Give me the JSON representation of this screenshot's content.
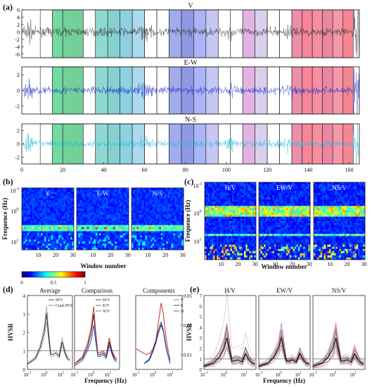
{
  "chart_data": [
    {
      "panel": "(a)",
      "type": "line",
      "traces": [
        {
          "name": "V",
          "color": "#333333",
          "ylim": [
            -7,
            6
          ],
          "yticks": [
            -6,
            -4,
            -2,
            0,
            2,
            4,
            6
          ],
          "spike_end": 6
        },
        {
          "name": "E-W",
          "color": "#2233cc",
          "ylim": [
            -3,
            3
          ],
          "yticks": [
            -2,
            0,
            2
          ],
          "spike_end": 2
        },
        {
          "name": "N-S",
          "color": "#22bbdd",
          "ylim": [
            -3,
            3
          ],
          "yticks": [
            -2,
            0,
            2
          ],
          "spike_end": 2
        }
      ],
      "xlim": [
        0,
        165
      ],
      "xticks": [
        0,
        20,
        40,
        60,
        80,
        100,
        120,
        140,
        160
      ],
      "window_edges": [
        9,
        15,
        20,
        30,
        36,
        42,
        48,
        54,
        60,
        66,
        72,
        78,
        84,
        90,
        96,
        102,
        108,
        114,
        120,
        126,
        132,
        137,
        142,
        147,
        152,
        157,
        162
      ],
      "window_colors": [
        "#ffffff",
        "#00bb55",
        "#00aa44",
        "#ffffff",
        "#33bbaa",
        "#22aaaa",
        "#33aacc",
        "#66bbdd",
        "#ffffff",
        "#ffffff",
        "#5566dd",
        "#3344cc",
        "#6677ee",
        "#9999ee",
        "#ffffff",
        "#ffffff",
        "#cc77cc",
        "#bbaadd",
        "#ffffff",
        "#ffffff",
        "#dd3366",
        "#ee2244",
        "#ee3355",
        "#dd2255",
        "#ee4466",
        "#ee2233"
      ]
    },
    {
      "panel": "(b)",
      "type": "heatmap",
      "subplots": [
        "V",
        "E-W",
        "N-S"
      ],
      "ylabel": "Frequence (Hz)",
      "xlabel": "Window number",
      "xticks": [
        10,
        20,
        30
      ],
      "yticks": [
        "10^-1",
        "10^0",
        "10^1"
      ],
      "colorbar": {
        "ticks": [
          0,
          0.5,
          1
        ]
      }
    },
    {
      "panel": "(c)",
      "type": "heatmap",
      "subplots": [
        "H/V",
        "EW/V",
        "NS/V"
      ],
      "ylabel": "Frequence (Hz)",
      "xlabel": "Window number",
      "xticks": [
        10,
        20,
        30
      ],
      "yticks": [
        "10^-1",
        "10^0",
        "10^1"
      ]
    },
    {
      "panel": "(d)",
      "type": "line",
      "ylabel": "HVSR",
      "xlabel": "Frequency (Hz)",
      "subplots": [
        {
          "title": "Average",
          "legend": [
            "H/V",
            "Conf.95%"
          ],
          "ylim": [
            0,
            4
          ],
          "yticks": [
            0,
            1,
            2,
            3,
            4
          ],
          "series": [
            {
              "name": "H/V",
              "color": "#222222",
              "x": [
                0.1,
                0.3,
                0.6,
                1.0,
                1.4,
                1.8,
                2.5,
                3.5,
                5,
                8,
                12,
                18,
                25,
                35
              ],
              "y": [
                0.3,
                0.6,
                1.2,
                2.0,
                3.0,
                2.0,
                0.8,
                0.8,
                0.9,
                0.7,
                1.5,
                0.9,
                0.6,
                0.5
              ]
            }
          ]
        },
        {
          "title": "Comparison",
          "legend": [
            "H/V",
            "E/V",
            "N/V"
          ],
          "ylim": [
            0,
            4
          ],
          "series": [
            {
              "name": "H/V",
              "color": "#222222",
              "x": [
                0.1,
                0.3,
                0.6,
                1.0,
                1.4,
                1.8,
                2.5,
                3.5,
                5,
                8,
                12,
                18,
                25,
                35
              ],
              "y": [
                0.3,
                0.6,
                1.2,
                2.0,
                3.0,
                2.0,
                0.8,
                0.8,
                0.9,
                0.7,
                1.5,
                0.9,
                0.6,
                0.5
              ]
            },
            {
              "name": "E/V",
              "color": "#3344cc",
              "x": [
                0.1,
                0.3,
                0.6,
                1.0,
                1.4,
                1.8,
                2.5,
                3.5,
                5,
                8,
                12,
                18,
                25,
                35
              ],
              "y": [
                0.2,
                0.5,
                1.0,
                1.6,
                2.4,
                1.6,
                0.7,
                0.7,
                0.8,
                0.6,
                1.3,
                0.8,
                0.5,
                0.4
              ]
            },
            {
              "name": "N/V",
              "color": "#cc3322",
              "x": [
                0.1,
                0.3,
                0.6,
                1.0,
                1.4,
                1.8,
                2.5,
                3.5,
                5,
                8,
                12,
                18,
                25,
                35
              ],
              "y": [
                0.3,
                0.7,
                1.4,
                2.3,
                3.4,
                2.2,
                0.9,
                0.9,
                1.0,
                0.8,
                1.7,
                1.0,
                0.7,
                0.6
              ]
            }
          ]
        },
        {
          "title": "Components",
          "legend": [
            "V",
            "E",
            "N"
          ],
          "ylim": [
            0,
            0.05
          ],
          "yticks": [
            0.01,
            0.03,
            0.05
          ],
          "series": [
            {
              "name": "V",
              "color": "#cc3322",
              "x": [
                0.1,
                0.2,
                0.4,
                0.7,
                1.0,
                1.5,
                2,
                3,
                4,
                6,
                10
              ],
              "y": [
                0.014,
                0.012,
                0.01,
                0.011,
                0.014,
                0.02,
                0.03,
                0.045,
                0.038,
                0.02,
                0.006
              ]
            },
            {
              "name": "E",
              "color": "#222222",
              "x": [
                0.3,
                0.6,
                1.0,
                1.5,
                2,
                3,
                4,
                6,
                10
              ],
              "y": [
                0.004,
                0.006,
                0.012,
                0.018,
                0.024,
                0.03,
                0.026,
                0.014,
                0.004
              ]
            },
            {
              "name": "N",
              "color": "#3344cc",
              "x": [
                0.3,
                0.6,
                1.0,
                1.5,
                2,
                3,
                4,
                6,
                10
              ],
              "y": [
                0.004,
                0.007,
                0.013,
                0.019,
                0.026,
                0.032,
                0.027,
                0.015,
                0.004
              ]
            }
          ]
        }
      ],
      "xticks": [
        "10^-1",
        "10^0",
        "10^1"
      ]
    },
    {
      "panel": "(e)",
      "type": "line",
      "ylabel": "HVSR",
      "xlabel": "Frequency (Hz)",
      "ylim": [
        0,
        7
      ],
      "yticks": [
        0,
        1,
        2,
        3,
        4,
        5,
        6,
        7
      ],
      "subplots": [
        "H/V",
        "EW/V",
        "NS/V"
      ],
      "xticks": [
        "10^-1",
        "10^0",
        "10^1"
      ],
      "mean_curve": {
        "x": [
          0.1,
          0.3,
          0.6,
          1.0,
          1.4,
          1.8,
          2.5,
          3.5,
          5,
          8,
          12,
          18,
          25,
          35
        ],
        "y": [
          0.3,
          0.6,
          1.2,
          2.0,
          3.0,
          2.0,
          0.8,
          0.8,
          0.9,
          0.7,
          1.5,
          0.9,
          0.6,
          0.5
        ]
      }
    }
  ],
  "labels": {
    "a": "(a)",
    "b": "(b)",
    "c": "(c)",
    "d": "(d)",
    "e": "(e)"
  }
}
